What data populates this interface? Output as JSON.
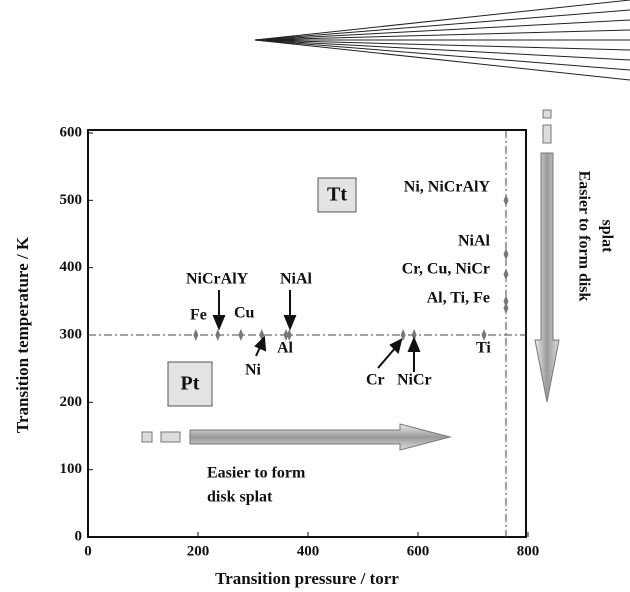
{
  "chart_data": {
    "type": "scatter",
    "xlabel": "Transition pressure / torr",
    "ylabel": "Transition temperature / K",
    "x": [
      196,
      236,
      278,
      316,
      360,
      366,
      573,
      593,
      720,
      760,
      760,
      760,
      760,
      760
    ],
    "y": [
      300,
      300,
      300,
      300,
      300,
      300,
      300,
      300,
      300,
      500,
      420,
      390,
      350,
      340
    ],
    "color": "#777777",
    "hlines": [
      300
    ],
    "vlines": [
      760
    ],
    "xlim": [
      0,
      800
    ],
    "ylim": [
      0,
      600
    ],
    "xticks": [
      0,
      200,
      400,
      600,
      800
    ],
    "yticks": [
      0,
      100,
      200,
      300,
      400,
      500,
      600
    ],
    "annotations": [
      "Ni, NiCrAlY",
      "NiAl",
      "Cr, Cu, NiCr",
      "Al, Ti, Fe",
      "NiCrAlY",
      "Fe",
      "Cu",
      "NiAl",
      "Ni",
      "Al",
      "Cr",
      "NiCr",
      "Ti",
      "Tt",
      "Pt",
      "Easier to form",
      "disk splat",
      "Easier to form disk",
      "splat"
    ]
  }
}
